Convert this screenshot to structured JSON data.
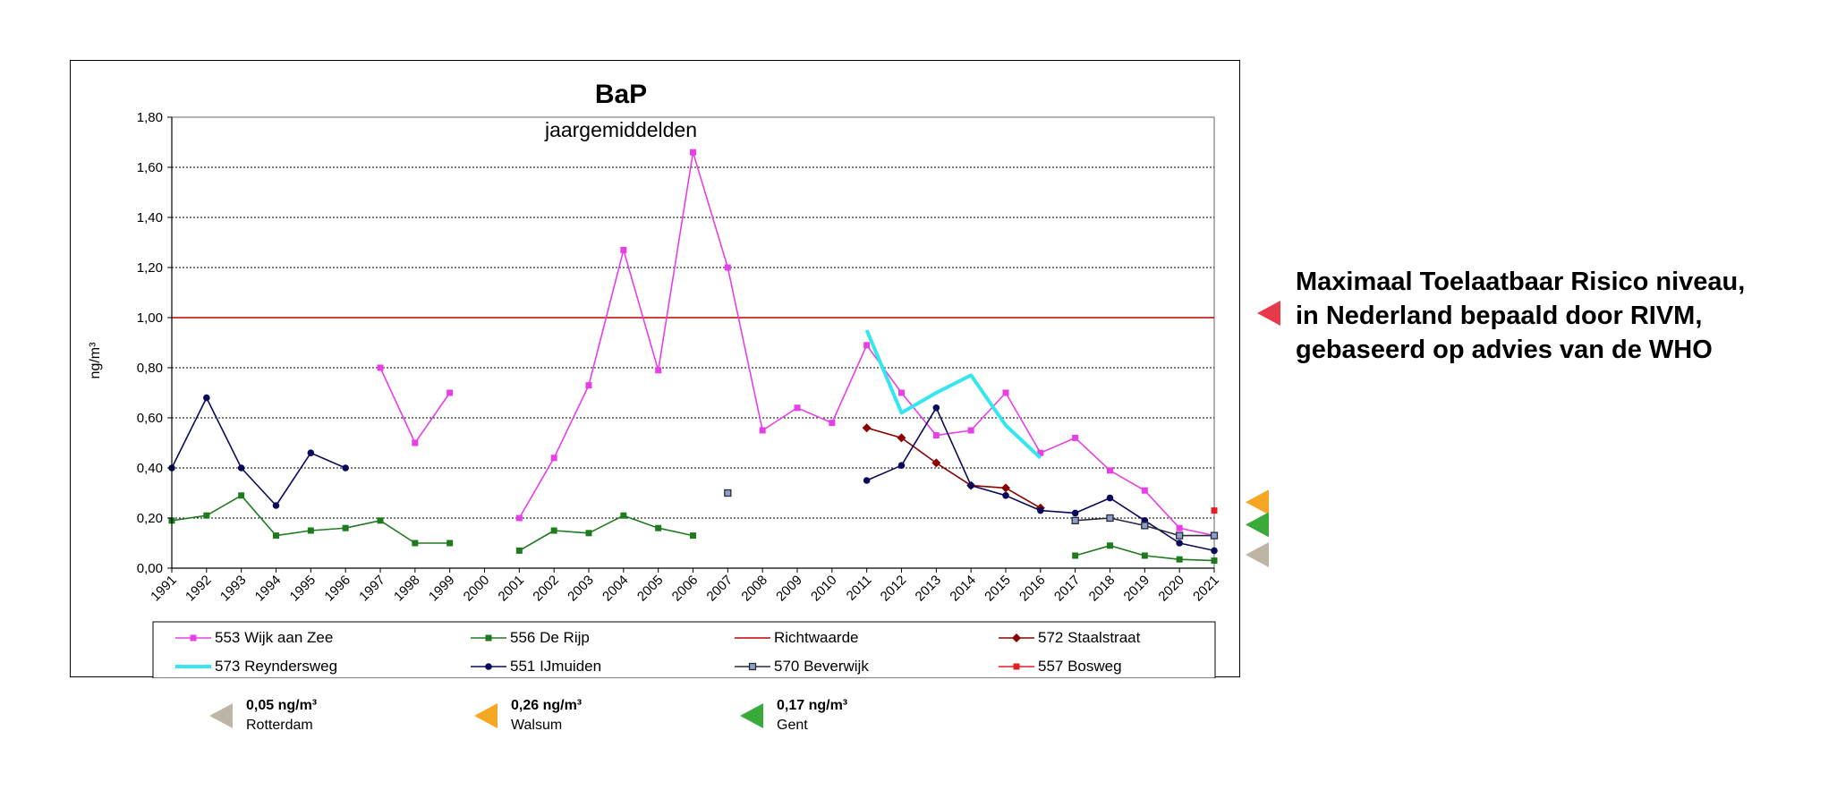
{
  "chart_data": {
    "type": "line",
    "title": "BaP",
    "subtitle": "jaargemiddelden",
    "ylabel": "ng/m³",
    "xlabel": "",
    "ylim": [
      0,
      1.8
    ],
    "yticks": [
      "0,00",
      "0,20",
      "0,40",
      "0,60",
      "0,80",
      "1,00",
      "1,20",
      "1,40",
      "1,60",
      "1,80"
    ],
    "categories": [
      "1991",
      "1992",
      "1993",
      "1994",
      "1995",
      "1996",
      "1997",
      "1998",
      "1999",
      "2000",
      "2001",
      "2002",
      "2003",
      "2004",
      "2005",
      "2006",
      "2007",
      "2008",
      "2009",
      "2010",
      "2011",
      "2012",
      "2013",
      "2014",
      "2015",
      "2016",
      "2017",
      "2018",
      "2019",
      "2020",
      "2021"
    ],
    "grid": true,
    "legend_placement": "bottom",
    "series": [
      {
        "name": "553 Wijk aan Zee",
        "color": "#e83ee8",
        "marker": "square",
        "values": [
          null,
          null,
          null,
          null,
          null,
          null,
          0.8,
          0.5,
          0.7,
          null,
          0.2,
          0.44,
          0.73,
          1.27,
          0.79,
          1.66,
          1.2,
          0.55,
          0.64,
          0.58,
          0.89,
          0.7,
          0.53,
          0.55,
          0.7,
          0.46,
          0.52,
          0.39,
          0.31,
          0.16,
          0.13
        ]
      },
      {
        "name": "556 De Rijp",
        "color": "#1f7a1f",
        "marker": "square",
        "values": [
          0.19,
          0.21,
          0.29,
          0.13,
          0.15,
          0.16,
          0.19,
          0.1,
          0.1,
          null,
          0.07,
          0.15,
          0.14,
          0.21,
          0.16,
          0.13,
          null,
          null,
          null,
          null,
          null,
          null,
          null,
          null,
          null,
          null,
          0.05,
          0.09,
          0.05,
          0.035,
          0.03
        ]
      },
      {
        "name": "Richtwaarde",
        "color": "#c00000",
        "marker": "none",
        "values": [
          1.0,
          1.0,
          1.0,
          1.0,
          1.0,
          1.0,
          1.0,
          1.0,
          1.0,
          1.0,
          1.0,
          1.0,
          1.0,
          1.0,
          1.0,
          1.0,
          1.0,
          1.0,
          1.0,
          1.0,
          1.0,
          1.0,
          1.0,
          1.0,
          1.0,
          1.0,
          1.0,
          1.0,
          1.0,
          1.0,
          1.0
        ]
      },
      {
        "name": "572 Staalstraat",
        "color": "#8b0000",
        "marker": "diamond",
        "values": [
          null,
          null,
          null,
          null,
          null,
          null,
          null,
          null,
          null,
          null,
          null,
          null,
          null,
          null,
          null,
          null,
          null,
          null,
          null,
          null,
          0.56,
          0.52,
          0.42,
          0.33,
          0.32,
          0.24,
          null,
          null,
          null,
          null,
          null
        ]
      },
      {
        "name": "573 Reyndersweg",
        "color": "#33e6f0",
        "marker": "none",
        "thick": true,
        "values": [
          null,
          null,
          null,
          null,
          null,
          null,
          null,
          null,
          null,
          null,
          null,
          null,
          null,
          null,
          null,
          null,
          null,
          null,
          null,
          null,
          0.95,
          0.62,
          0.7,
          0.77,
          0.57,
          0.44,
          null,
          null,
          null,
          null,
          null
        ]
      },
      {
        "name": "551 IJmuiden",
        "color": "#0a0a5c",
        "marker": "circle",
        "values": [
          0.4,
          0.68,
          0.4,
          0.25,
          0.46,
          0.4,
          null,
          null,
          null,
          null,
          null,
          null,
          null,
          null,
          null,
          null,
          null,
          null,
          null,
          null,
          0.35,
          0.41,
          0.64,
          0.33,
          0.29,
          0.23,
          0.22,
          0.28,
          0.19,
          0.1,
          0.07
        ]
      },
      {
        "name": "570 Beverwijk",
        "color": "#2a2a3a",
        "marker": "xsquare",
        "values": [
          null,
          null,
          null,
          null,
          null,
          null,
          null,
          null,
          null,
          null,
          null,
          null,
          null,
          null,
          null,
          null,
          0.3,
          null,
          null,
          null,
          null,
          null,
          null,
          null,
          null,
          null,
          0.19,
          0.2,
          0.17,
          0.13,
          0.13
        ]
      },
      {
        "name": "557 Bosweg",
        "color": "#e02020",
        "marker": "square",
        "values": [
          null,
          null,
          null,
          null,
          null,
          null,
          null,
          null,
          null,
          null,
          null,
          null,
          null,
          null,
          null,
          null,
          null,
          null,
          null,
          null,
          null,
          null,
          null,
          null,
          null,
          null,
          null,
          null,
          null,
          null,
          0.23
        ]
      }
    ],
    "reference_markers": [
      {
        "value": 0.05,
        "label": "0,05 ng/m³",
        "city": "Rotterdam",
        "color": "#bdb6a6"
      },
      {
        "value": 0.26,
        "label": "0,26 ng/m³",
        "city": "Walsum",
        "color": "#f5a623"
      },
      {
        "value": 0.17,
        "label": "0,17 ng/m³",
        "city": "Gent",
        "color": "#3aaa3a"
      }
    ]
  },
  "annotation": {
    "lines": [
      "Maximaal Toelaatbaar Risico niveau,",
      "in Nederland bepaald door RIVM,",
      "gebaseerd op advies van de WHO"
    ],
    "arrow_color": "#e8394a"
  }
}
